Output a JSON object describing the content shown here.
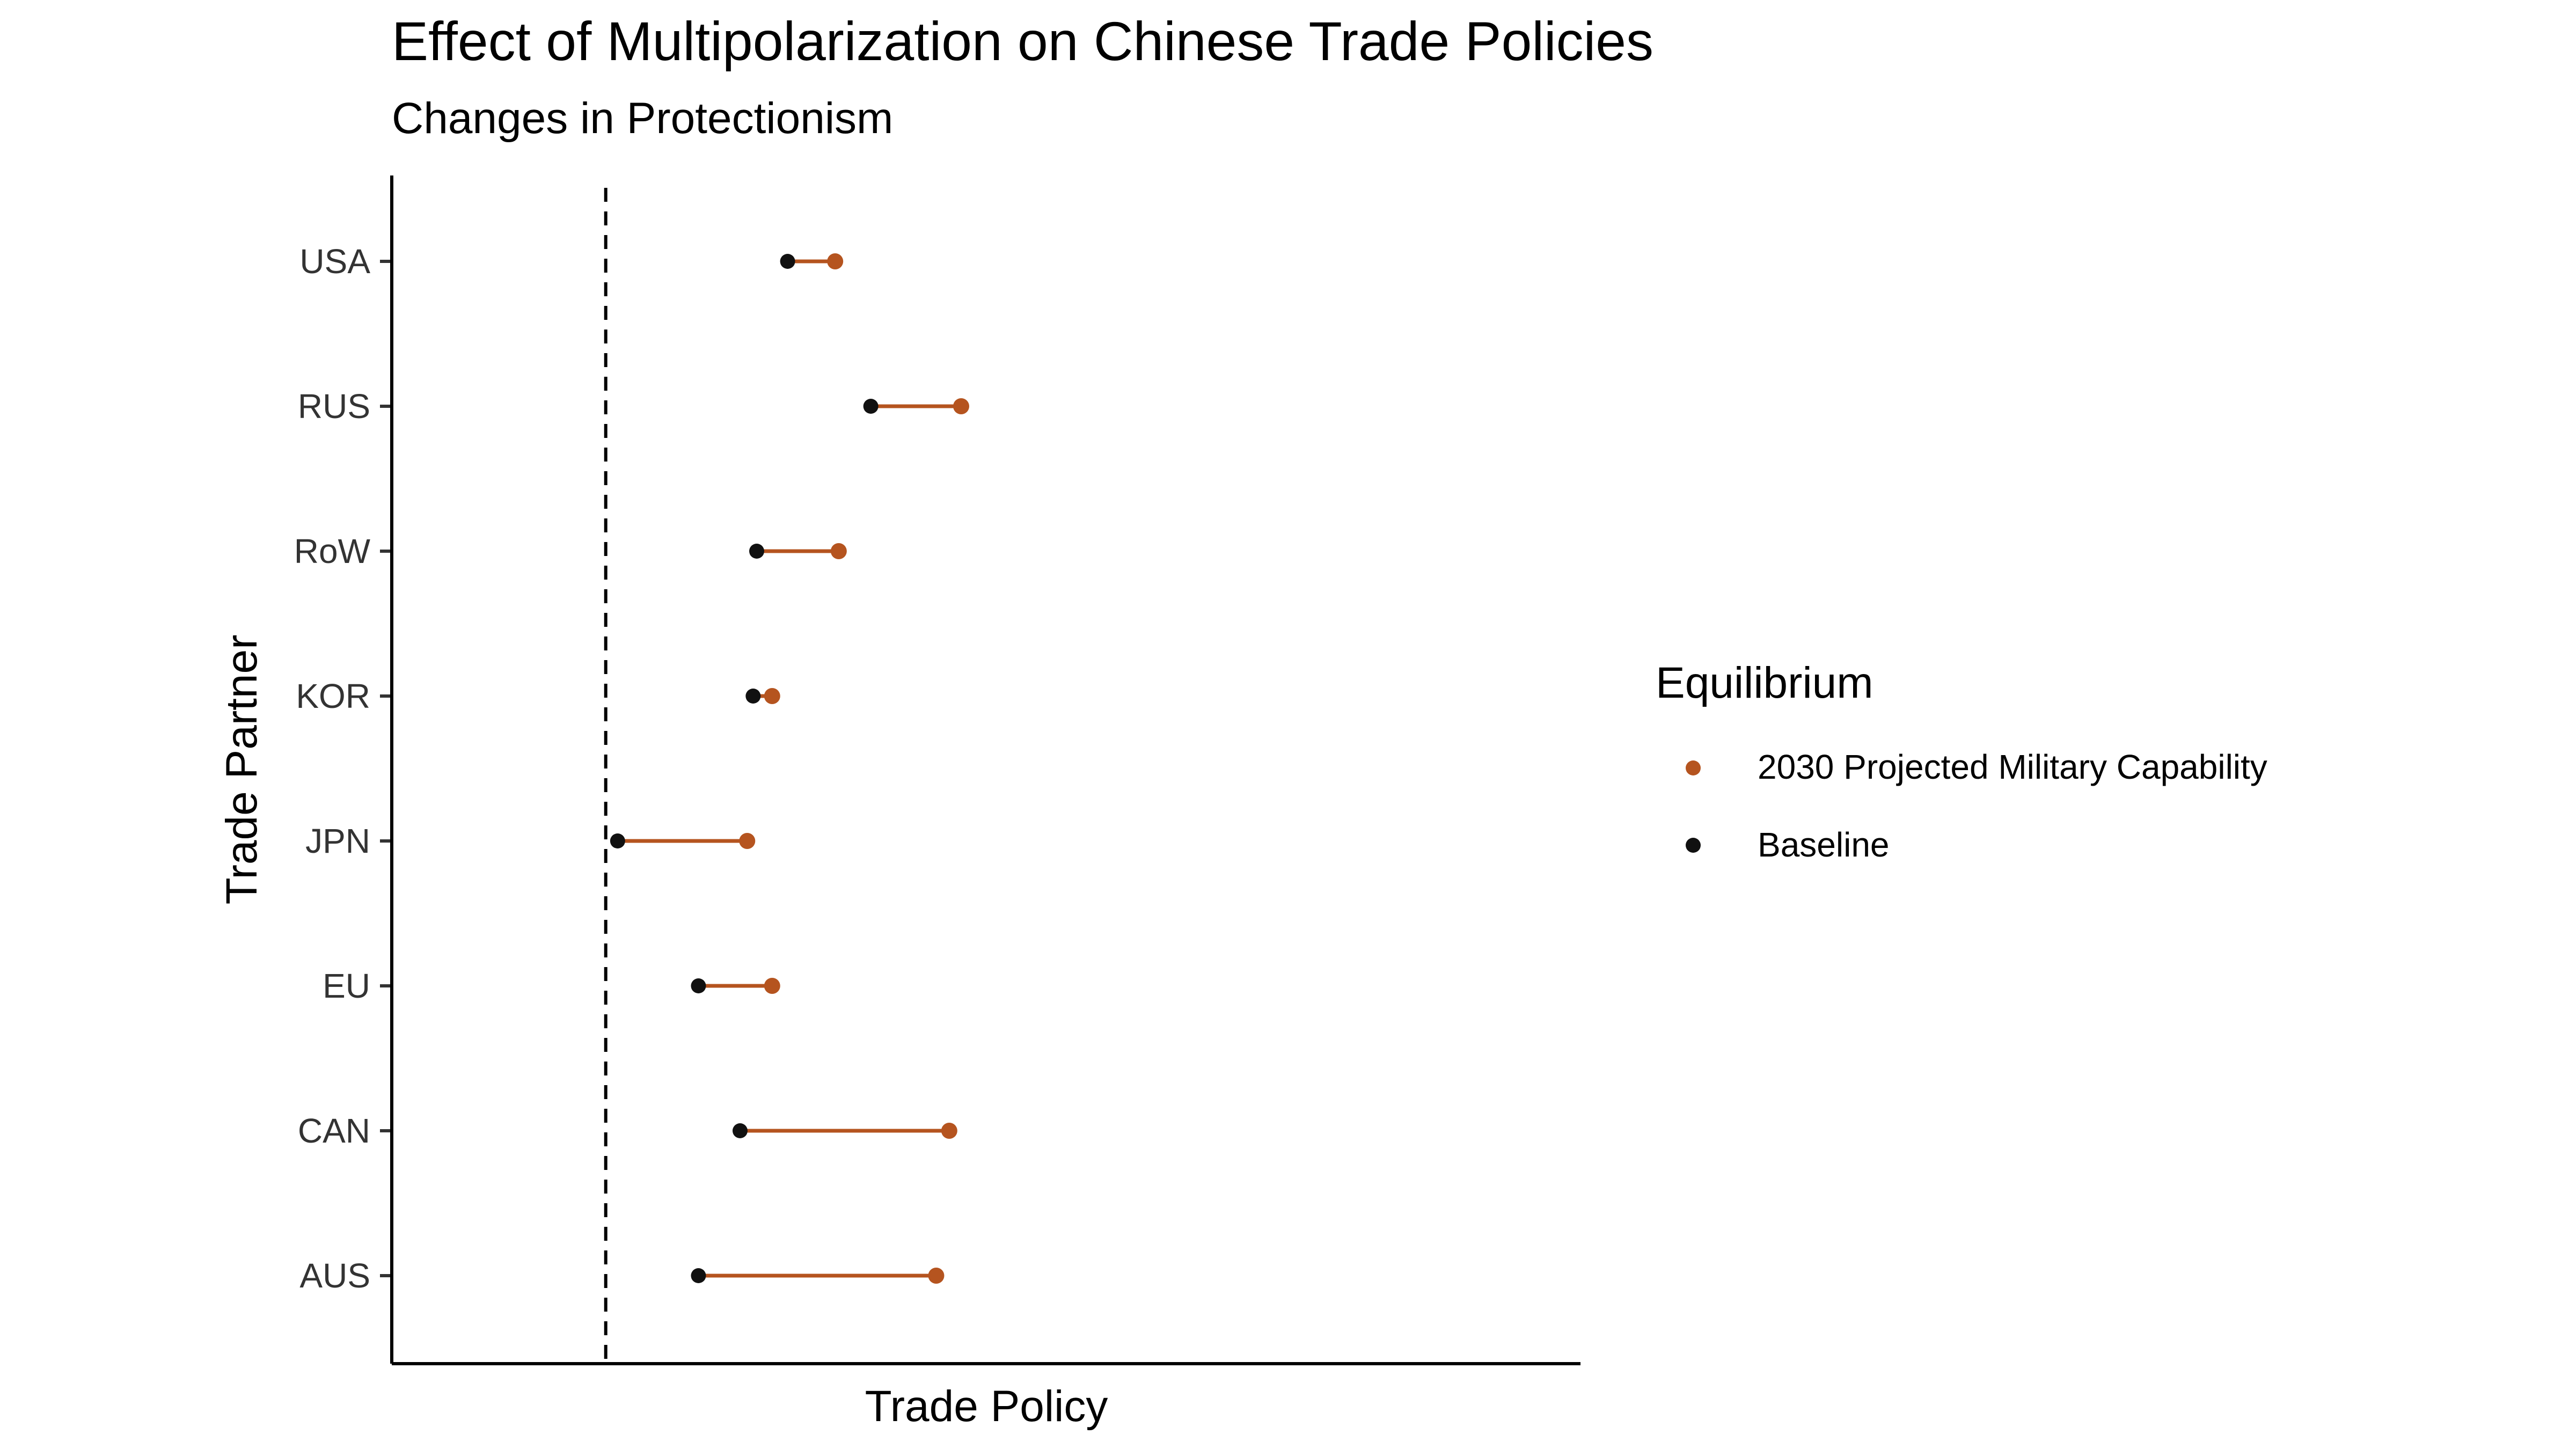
{
  "chart_data": {
    "type": "dumbbell",
    "title": "Effect of Multipolarization on Chinese Trade Policies",
    "subtitle": "Changes in Protectionism",
    "xlabel": "Trade Policy",
    "ylabel": "Trade Partner",
    "xlim": [
      0,
      1
    ],
    "reference_line_x": 0.18,
    "categories": [
      "USA",
      "RUS",
      "RoW",
      "KOR",
      "JPN",
      "EU",
      "CAN",
      "AUS"
    ],
    "series": [
      {
        "name": "Baseline",
        "color": "#111111",
        "values": [
          0.333,
          0.403,
          0.307,
          0.304,
          0.19,
          0.258,
          0.293,
          0.258
        ]
      },
      {
        "name": "2030 Projected Military Capability",
        "color": "#B5541F",
        "values": [
          0.373,
          0.479,
          0.376,
          0.32,
          0.299,
          0.32,
          0.469,
          0.458
        ]
      }
    ],
    "legend": {
      "title": "Equilibrium",
      "placement": "right",
      "entries": [
        "2030 Projected Military Capability",
        "Baseline"
      ]
    },
    "grid": false
  }
}
